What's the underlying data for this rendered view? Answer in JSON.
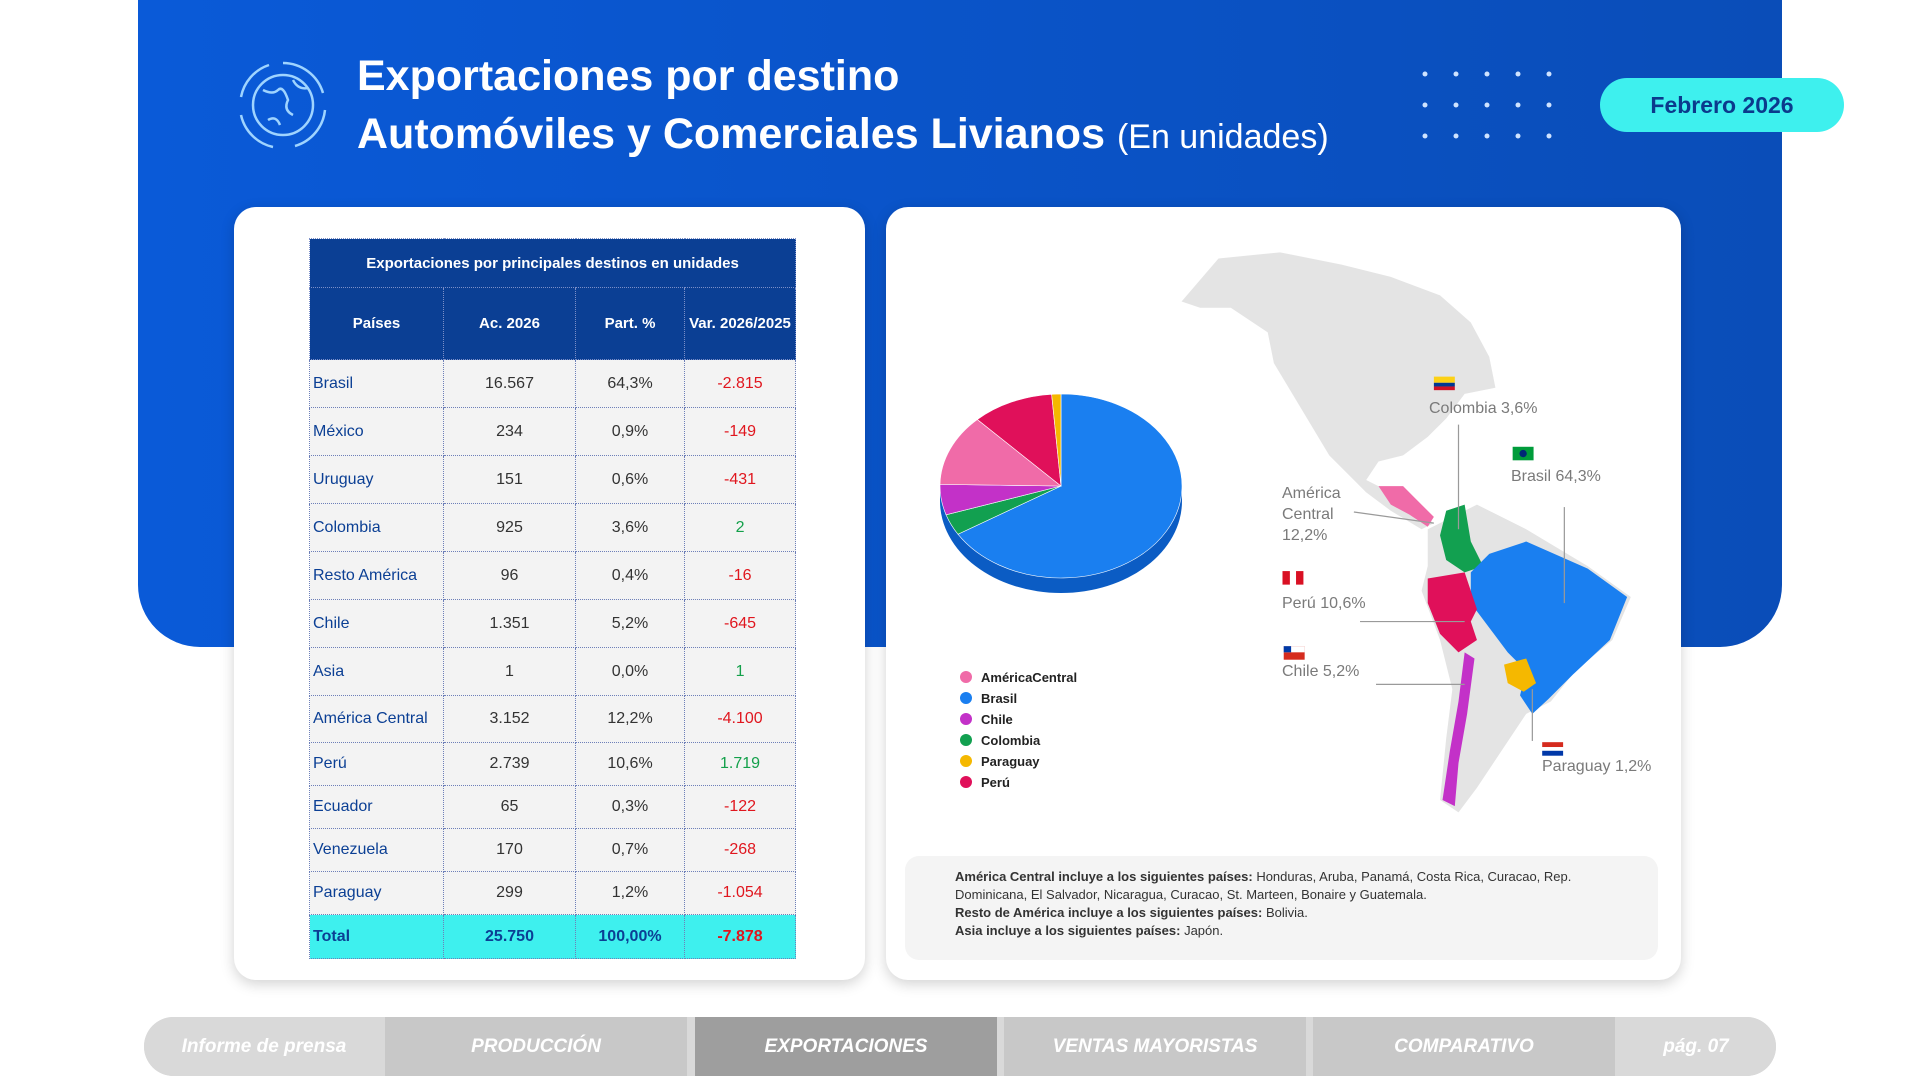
{
  "header": {
    "title_line1": "Exportaciones por destino",
    "title_line2": "Automóviles y Comerciales Livianos",
    "title_unit": "(En unidades)",
    "period": "Febrero 2026"
  },
  "table": {
    "title": "Exportaciones por principales destinos en unidades",
    "columns": [
      "Países",
      "Ac. 2026",
      "Part. %",
      "Var. 2026/2025"
    ],
    "rows": [
      [
        "Brasil",
        "16.567",
        "64,3%",
        "-2.815"
      ],
      [
        "México",
        "234",
        "0,9%",
        "-149"
      ],
      [
        "Uruguay",
        "151",
        "0,6%",
        "-431"
      ],
      [
        "Colombia",
        "925",
        "3,6%",
        "2"
      ],
      [
        "Resto América",
        "96",
        "0,4%",
        "-16"
      ],
      [
        "Chile",
        "1.351",
        "5,2%",
        "-645"
      ],
      [
        "Asia",
        "1",
        "0,0%",
        "1"
      ],
      [
        "América Central",
        "3.152",
        "12,2%",
        "-4.100"
      ],
      [
        "Perú",
        "2.739",
        "10,6%",
        "1.719"
      ],
      [
        "Ecuador",
        "65",
        "0,3%",
        "-122"
      ],
      [
        "Venezuela",
        "170",
        "0,7%",
        "-268"
      ],
      [
        "Paraguay",
        "299",
        "1,2%",
        "-1.054"
      ]
    ],
    "total": [
      "Total",
      "25.750",
      "100,00%",
      "-7.878"
    ]
  },
  "pie": {
    "slices": [
      {
        "name": "Brasil",
        "color": "#1a7ff0",
        "value": 64.3
      },
      {
        "name": "Colombia",
        "color": "#12a050",
        "value": 3.6
      },
      {
        "name": "Chile",
        "color": "#c331c8",
        "value": 5.2
      },
      {
        "name": "AméricaCentral",
        "color": "#f06ba8",
        "value": 12.2
      },
      {
        "name": "Perú",
        "color": "#e0105a",
        "value": 10.6
      },
      {
        "name": "Paraguay",
        "color": "#f5b800",
        "value": 1.2
      }
    ]
  },
  "map_labels": {
    "colombia": "Colombia 3,6%",
    "brasil": "Brasil 64,3%",
    "america_central": "América Central 12,2%",
    "peru": "Perú 10,6%",
    "chile": "Chile 5,2%",
    "paraguay": "Paraguay 1,2%"
  },
  "notes": [
    {
      "bold": "América Central incluye a los siguientes países:",
      "text": "Honduras, Aruba, Panamá, Costa Rica, Curacao, Rep. Dominicana, El Salvador, Nicaragua, Curacao, St. Marteen, Bonaire y Guatemala."
    },
    {
      "bold": "Resto de América incluye a los siguientes países:",
      "text": "Bolivia."
    },
    {
      "bold": "Asia incluye a los siguientes países:",
      "text": "Japón."
    }
  ],
  "nav": [
    "Informe de prensa",
    "PRODUCCIÓN",
    "EXPORTACIONES",
    "VENTAS MAYORISTAS",
    "COMPARATIVO",
    "pág. 07"
  ]
}
